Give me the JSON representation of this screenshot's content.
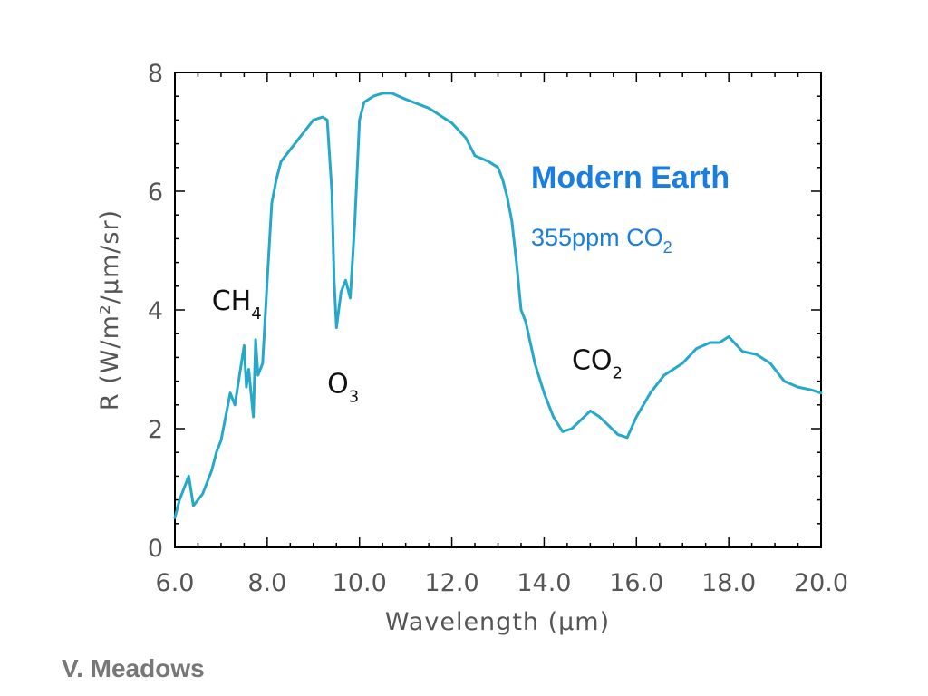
{
  "credit": "V. Meadows",
  "chart_data": {
    "type": "line",
    "xlabel": "Wavelength (μm)",
    "ylabel": "R (W/m²/μm/sr)",
    "xlim": [
      6.0,
      20.0
    ],
    "ylim": [
      0,
      8
    ],
    "x_ticks": [
      "6.0",
      "8.0",
      "10.0",
      "12.0",
      "14.0",
      "16.0",
      "18.0",
      "20.0"
    ],
    "y_ticks": [
      "0",
      "2",
      "4",
      "6",
      "8"
    ],
    "grid": false,
    "series_color": "#26a8c9",
    "legend": {
      "title": "Modern  Earth",
      "subtitle_main": "355ppm CO",
      "subtitle_sub": "2",
      "color": "#1a7de0"
    },
    "annotations": [
      {
        "main": "CH",
        "sub": "4",
        "x": 6.8,
        "y": 4.0
      },
      {
        "main": "O",
        "sub": "3",
        "x": 9.3,
        "y": 2.6
      },
      {
        "main": "CO",
        "sub": "2",
        "x": 14.6,
        "y": 3.0
      }
    ],
    "series": [
      {
        "x": [
          6.0,
          6.1,
          6.2,
          6.3,
          6.4,
          6.5,
          6.6,
          6.7,
          6.8,
          6.9,
          7.0,
          7.1,
          7.2,
          7.3,
          7.4,
          7.5,
          7.55,
          7.6,
          7.7,
          7.75,
          7.8,
          7.9,
          8.0,
          8.1,
          8.2,
          8.3,
          8.4,
          8.5,
          8.6,
          8.8,
          9.0,
          9.2,
          9.3,
          9.4,
          9.45,
          9.5,
          9.55,
          9.6,
          9.7,
          9.8,
          9.9,
          10.0,
          10.1,
          10.3,
          10.5,
          10.7,
          11.0,
          11.5,
          12.0,
          12.3,
          12.5,
          12.8,
          13.0,
          13.1,
          13.2,
          13.3,
          13.4,
          13.5,
          13.6,
          13.8,
          14.0,
          14.2,
          14.4,
          14.6,
          14.8,
          15.0,
          15.2,
          15.4,
          15.6,
          15.8,
          16.0,
          16.3,
          16.6,
          17.0,
          17.3,
          17.6,
          17.8,
          18.0,
          18.3,
          18.6,
          18.9,
          19.2,
          19.5,
          19.8,
          20.0
        ],
        "y": [
          0.5,
          0.8,
          1.0,
          1.2,
          0.7,
          0.8,
          0.9,
          1.1,
          1.3,
          1.6,
          1.8,
          2.2,
          2.6,
          2.4,
          2.9,
          3.4,
          2.7,
          3.0,
          2.2,
          3.5,
          2.9,
          3.1,
          4.5,
          5.8,
          6.2,
          6.5,
          6.6,
          6.7,
          6.8,
          7.0,
          7.2,
          7.25,
          7.2,
          6.0,
          4.5,
          3.7,
          4.0,
          4.3,
          4.5,
          4.2,
          5.5,
          7.2,
          7.5,
          7.6,
          7.65,
          7.65,
          7.55,
          7.4,
          7.15,
          6.9,
          6.6,
          6.5,
          6.4,
          6.2,
          5.9,
          5.5,
          4.8,
          4.0,
          3.8,
          3.1,
          2.6,
          2.2,
          1.95,
          2.0,
          2.15,
          2.3,
          2.2,
          2.05,
          1.9,
          1.85,
          2.2,
          2.6,
          2.9,
          3.1,
          3.35,
          3.45,
          3.45,
          3.55,
          3.3,
          3.25,
          3.1,
          2.8,
          2.7,
          2.65,
          2.6
        ]
      }
    ]
  }
}
